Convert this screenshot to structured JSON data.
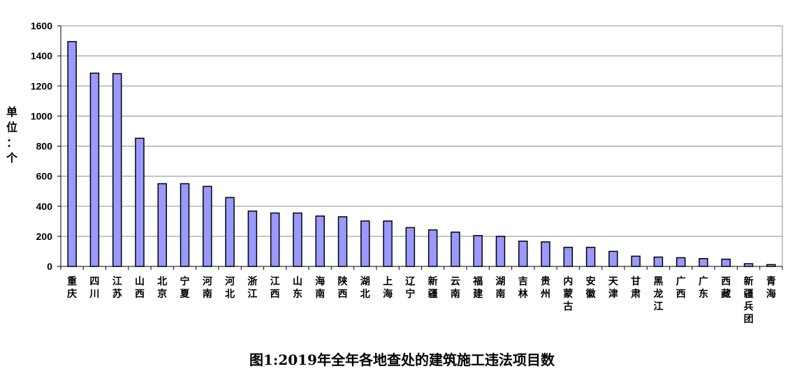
{
  "chart_data": {
    "type": "bar",
    "title": "图1:2019年全年各地查处的建筑施工违法项目数",
    "ylabel": "单位：个",
    "xlabel": "",
    "ylim": [
      0,
      1600
    ],
    "yticks": [
      0,
      200,
      400,
      600,
      800,
      1000,
      1200,
      1400,
      1600
    ],
    "grid": true,
    "legend": "none",
    "bar_color": "#9999ff",
    "categories": [
      "重庆",
      "四川",
      "江苏",
      "山西",
      "北京",
      "宁夏",
      "河南",
      "河北",
      "浙江",
      "江西",
      "山东",
      "海南",
      "陕西",
      "湖北",
      "上海",
      "辽宁",
      "新疆",
      "云南",
      "福建",
      "湖南",
      "吉林",
      "贵州",
      "内蒙古",
      "安徽",
      "天津",
      "甘肃",
      "黑龙江",
      "广西",
      "广东",
      "西藏",
      "新疆兵团",
      "青海"
    ],
    "values": [
      1495,
      1285,
      1282,
      852,
      550,
      550,
      532,
      458,
      368,
      355,
      355,
      335,
      330,
      302,
      302,
      258,
      243,
      228,
      205,
      200,
      168,
      163,
      127,
      127,
      100,
      68,
      62,
      58,
      52,
      48,
      18,
      12
    ]
  }
}
